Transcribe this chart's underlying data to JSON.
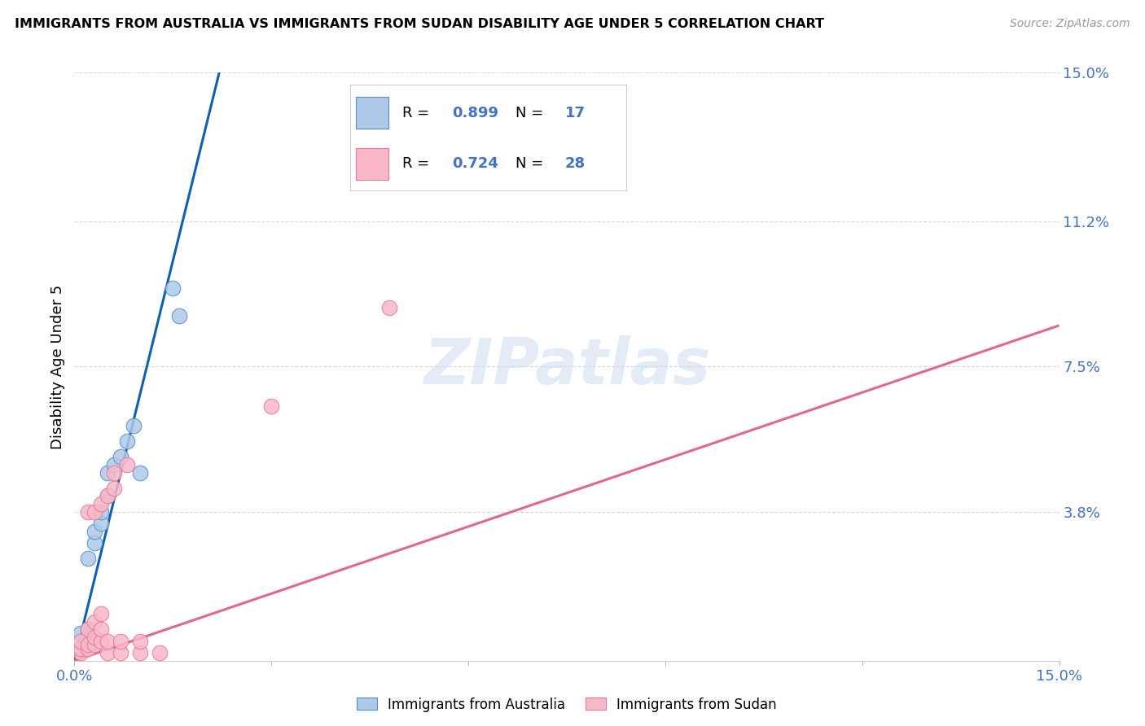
{
  "title": "IMMIGRANTS FROM AUSTRALIA VS IMMIGRANTS FROM SUDAN DISABILITY AGE UNDER 5 CORRELATION CHART",
  "source": "Source: ZipAtlas.com",
  "ylabel": "Disability Age Under 5",
  "watermark": "ZIPatlas",
  "xmin": 0.0,
  "xmax": 0.15,
  "ymin": 0.0,
  "ymax": 0.15,
  "australia_fill": "#aec8e8",
  "australia_edge": "#5090c8",
  "sudan_fill": "#f8b8c8",
  "sudan_edge": "#e87898",
  "australia_line_color": "#1060b0",
  "sudan_line_color": "#e06888",
  "r1": "0.899",
  "n1": "17",
  "r2": "0.724",
  "n2": "28",
  "r_color": "#4472c4",
  "n_color": "#e05888",
  "axis_color": "#4472c4",
  "grid_color": "#d8d8d8",
  "australia_scatter": [
    [
      0.001,
      0.003
    ],
    [
      0.001,
      0.007
    ],
    [
      0.002,
      0.008
    ],
    [
      0.002,
      0.026
    ],
    [
      0.003,
      0.03
    ],
    [
      0.003,
      0.033
    ],
    [
      0.004,
      0.035
    ],
    [
      0.004,
      0.038
    ],
    [
      0.005,
      0.042
    ],
    [
      0.005,
      0.048
    ],
    [
      0.006,
      0.05
    ],
    [
      0.007,
      0.052
    ],
    [
      0.008,
      0.056
    ],
    [
      0.009,
      0.06
    ],
    [
      0.01,
      0.048
    ],
    [
      0.015,
      0.095
    ],
    [
      0.016,
      0.088
    ]
  ],
  "sudan_scatter": [
    [
      0.001,
      0.002
    ],
    [
      0.001,
      0.003
    ],
    [
      0.001,
      0.005
    ],
    [
      0.002,
      0.003
    ],
    [
      0.002,
      0.004
    ],
    [
      0.002,
      0.008
    ],
    [
      0.002,
      0.038
    ],
    [
      0.003,
      0.004
    ],
    [
      0.003,
      0.006
    ],
    [
      0.003,
      0.01
    ],
    [
      0.003,
      0.038
    ],
    [
      0.004,
      0.005
    ],
    [
      0.004,
      0.008
    ],
    [
      0.004,
      0.012
    ],
    [
      0.004,
      0.04
    ],
    [
      0.005,
      0.002
    ],
    [
      0.005,
      0.005
    ],
    [
      0.005,
      0.042
    ],
    [
      0.006,
      0.044
    ],
    [
      0.006,
      0.048
    ],
    [
      0.007,
      0.002
    ],
    [
      0.007,
      0.005
    ],
    [
      0.008,
      0.05
    ],
    [
      0.01,
      0.002
    ],
    [
      0.01,
      0.005
    ],
    [
      0.013,
      0.002
    ],
    [
      0.048,
      0.09
    ],
    [
      0.03,
      0.065
    ]
  ],
  "aus_line_solid": [
    [
      0.0,
      0.022
    ],
    [
      0.0,
      0.148
    ]
  ],
  "aus_line_dashed": [
    [
      0.018,
      0.027
    ],
    [
      0.132,
      0.198
    ]
  ],
  "sud_line": [
    [
      0.0,
      0.15
    ],
    [
      0.015,
      0.085
    ]
  ],
  "x_ticks": [
    0.0,
    0.03,
    0.06,
    0.09,
    0.12,
    0.15
  ],
  "y_ticks": [
    0.038,
    0.075,
    0.112,
    0.15
  ],
  "y_tick_labels": [
    "3.8%",
    "7.5%",
    "11.2%",
    "15.0%"
  ]
}
